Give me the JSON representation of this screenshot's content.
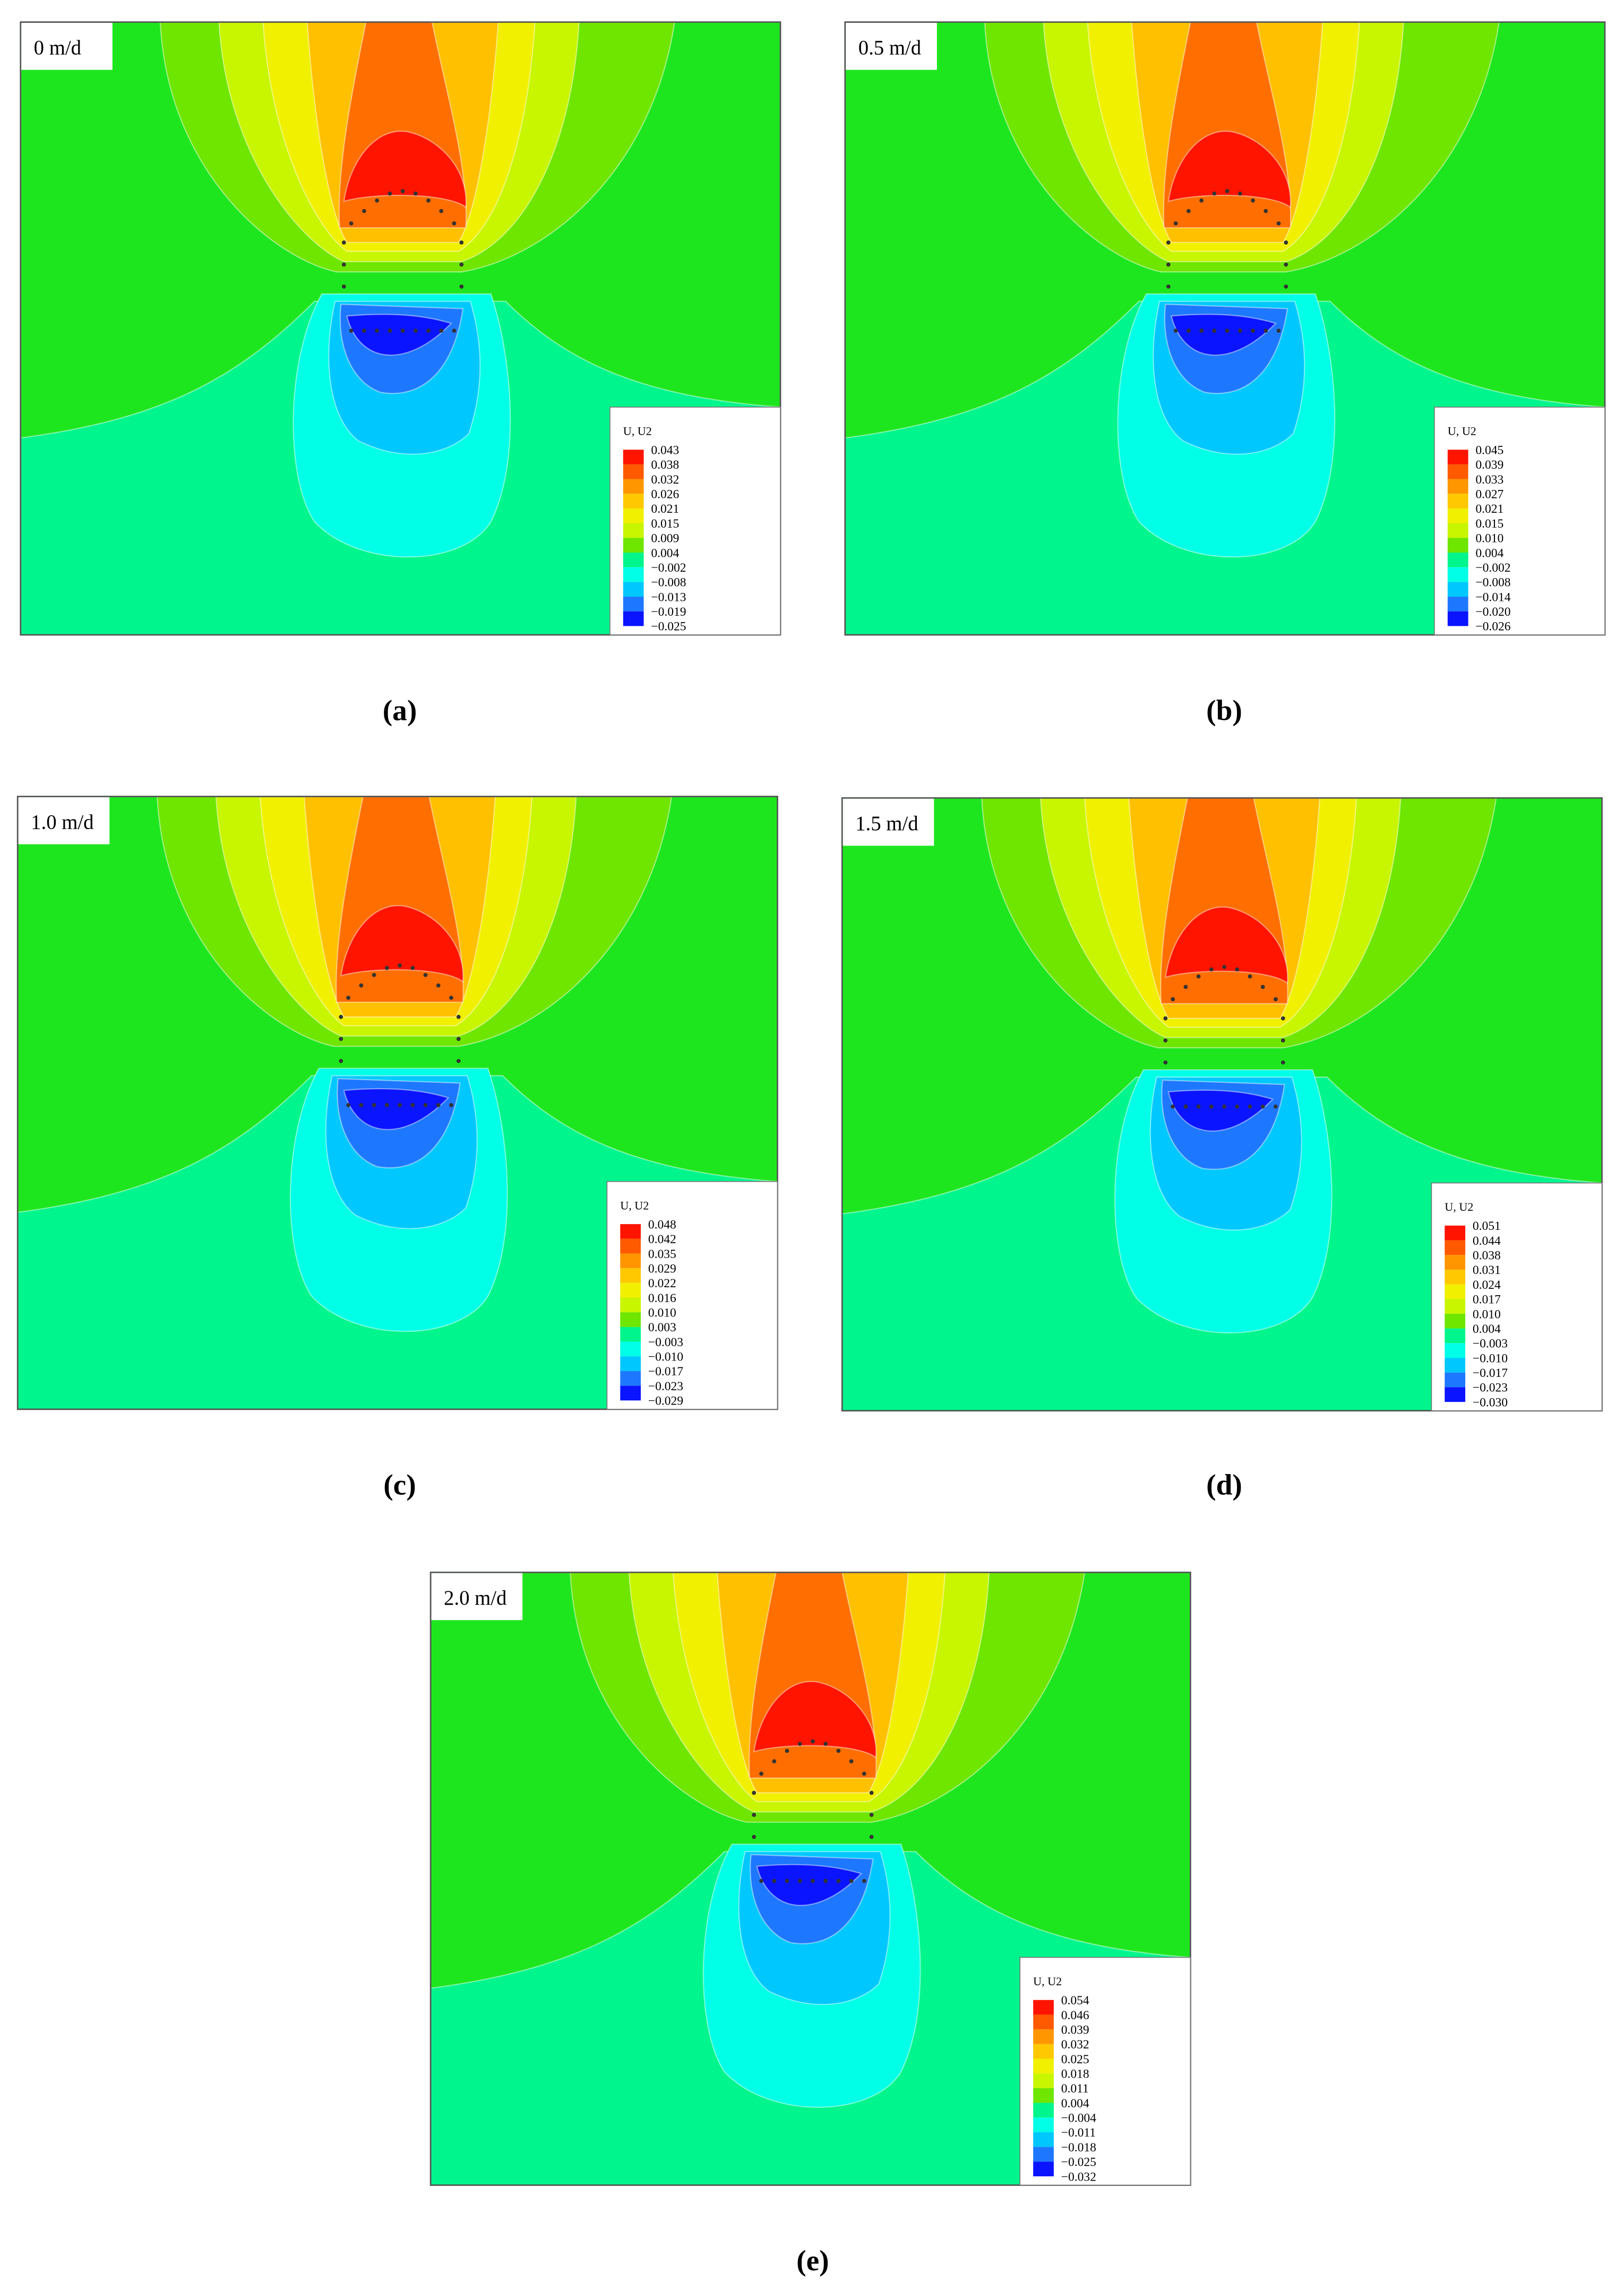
{
  "panels": [
    {
      "label": "0 m/d",
      "caption": "(a)",
      "legend_title": "U, U2",
      "legend_values": [
        "0.043",
        "0.038",
        "0.032",
        "0.026",
        "0.021",
        "0.015",
        "0.009",
        "0.004",
        "−0.002",
        "−0.008",
        "−0.013",
        "−0.019",
        "−0.025"
      ]
    },
    {
      "label": "0.5 m/d",
      "caption": "(b)",
      "legend_title": "U, U2",
      "legend_values": [
        "0.045",
        "0.039",
        "0.033",
        "0.027",
        "0.021",
        "0.015",
        "0.010",
        "0.004",
        "−0.002",
        "−0.008",
        "−0.014",
        "−0.020",
        "−0.026"
      ]
    },
    {
      "label": "1.0 m/d",
      "caption": "(c)",
      "legend_title": "U, U2",
      "legend_values": [
        "0.048",
        "0.042",
        "0.035",
        "0.029",
        "0.022",
        "0.016",
        "0.010",
        "0.003",
        "−0.003",
        "−0.010",
        "−0.017",
        "−0.023",
        "−0.029"
      ]
    },
    {
      "label": "1.5 m/d",
      "caption": "(d)",
      "legend_title": "U, U2",
      "legend_values": [
        "0.051",
        "0.044",
        "0.038",
        "0.031",
        "0.024",
        "0.017",
        "0.010",
        "0.004",
        "−0.003",
        "−0.010",
        "−0.017",
        "−0.023",
        "−0.030"
      ]
    },
    {
      "label": "2.0 m/d",
      "caption": "(e)",
      "legend_title": "U, U2",
      "legend_values": [
        "0.054",
        "0.046",
        "0.039",
        "0.032",
        "0.025",
        "0.018",
        "0.011",
        "0.004",
        "−0.004",
        "−0.011",
        "−0.018",
        "−0.025",
        "−0.032"
      ]
    }
  ]
}
